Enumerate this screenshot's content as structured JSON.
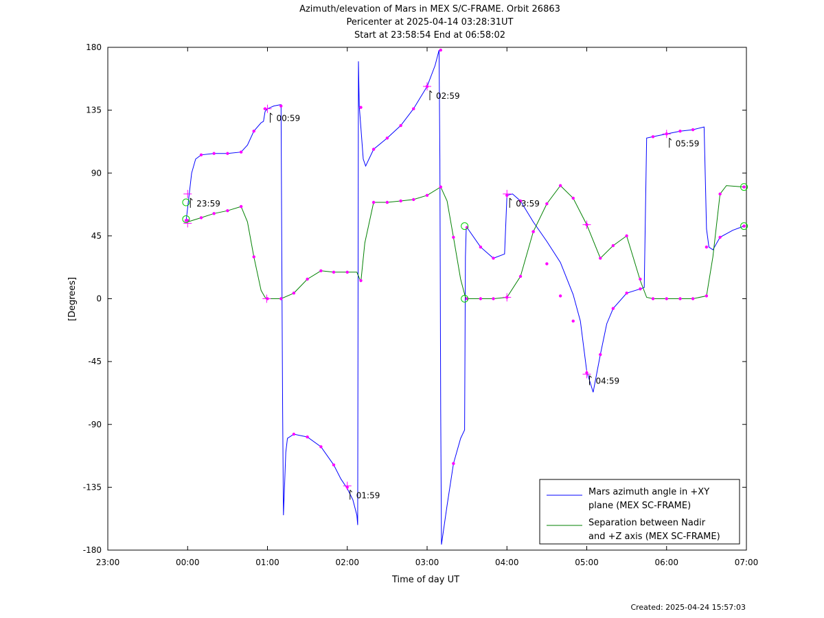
{
  "chart_data": {
    "type": "line",
    "title_lines": [
      "Azimuth/elevation of Mars in MEX S/C-FRAME.  Orbit 26863",
      "Pericenter at 2025-04-14 03:28:31UT",
      "Start at 23:58:54 End at 06:58:02"
    ],
    "xlabel": "Time of day UT",
    "ylabel": "[Degrees]",
    "xlim": [
      -1.0,
      7.0
    ],
    "ylim": [
      -180,
      180
    ],
    "x_ticks": [
      -1,
      0,
      1,
      2,
      3,
      4,
      5,
      6,
      7
    ],
    "x_tick_labels": [
      "23:00",
      "00:00",
      "01:00",
      "02:00",
      "03:00",
      "04:00",
      "05:00",
      "06:00",
      "07:00"
    ],
    "y_ticks": [
      180,
      135,
      90,
      45,
      0,
      -45,
      -90,
      -135,
      -180
    ],
    "y_tick_labels": [
      "180",
      "135",
      "90",
      "45",
      "0",
      "-45",
      "-90",
      "-135",
      "-180"
    ],
    "grid": false,
    "legend_position": "bottom-right",
    "series": [
      {
        "name_lines": [
          "Mars azimuth angle in +XY",
          "plane (MEX SC-FRAME)"
        ],
        "color": "#0000ff",
        "points": [
          [
            -0.02,
            55
          ],
          [
            0.05,
            90
          ],
          [
            0.1,
            100
          ],
          [
            0.17,
            103
          ],
          [
            0.33,
            104
          ],
          [
            0.5,
            104
          ],
          [
            0.67,
            105
          ],
          [
            0.75,
            110
          ],
          [
            0.83,
            120
          ],
          [
            0.92,
            126
          ],
          [
            0.95,
            127
          ],
          [
            0.97,
            134
          ],
          [
            1.0,
            136
          ],
          [
            1.08,
            138
          ],
          [
            1.17,
            139
          ],
          [
            1.18,
            30
          ],
          [
            1.19,
            -80
          ],
          [
            1.2,
            -155
          ],
          [
            1.23,
            -110
          ],
          [
            1.25,
            -100
          ],
          [
            1.33,
            -97
          ],
          [
            1.5,
            -99
          ],
          [
            1.67,
            -106
          ],
          [
            1.83,
            -119
          ],
          [
            1.92,
            -129
          ],
          [
            2.0,
            -136
          ],
          [
            2.07,
            -144
          ],
          [
            2.12,
            -155
          ],
          [
            2.13,
            -162
          ],
          [
            2.14,
            170
          ],
          [
            2.15,
            138
          ],
          [
            2.2,
            100
          ],
          [
            2.23,
            95
          ],
          [
            2.33,
            107
          ],
          [
            2.5,
            115
          ],
          [
            2.67,
            124
          ],
          [
            2.83,
            136
          ],
          [
            3.0,
            152
          ],
          [
            3.1,
            167
          ],
          [
            3.15,
            178
          ],
          [
            3.16,
            100
          ],
          [
            3.17,
            -80
          ],
          [
            3.18,
            -176
          ],
          [
            3.25,
            -148
          ],
          [
            3.33,
            -118
          ],
          [
            3.42,
            -100
          ],
          [
            3.47,
            -94
          ],
          [
            3.48,
            30
          ],
          [
            3.49,
            51
          ],
          [
            3.5,
            51
          ],
          [
            3.67,
            37
          ],
          [
            3.83,
            29
          ],
          [
            3.97,
            32
          ],
          [
            4.0,
            74
          ],
          [
            4.07,
            75
          ],
          [
            4.17,
            70
          ],
          [
            4.33,
            55
          ],
          [
            4.5,
            41
          ],
          [
            4.67,
            26
          ],
          [
            4.83,
            3
          ],
          [
            4.92,
            -16
          ],
          [
            5.0,
            -52
          ],
          [
            5.08,
            -67
          ],
          [
            5.17,
            -40
          ],
          [
            5.25,
            -18
          ],
          [
            5.33,
            -7
          ],
          [
            5.5,
            4
          ],
          [
            5.67,
            7
          ],
          [
            5.72,
            8
          ],
          [
            5.75,
            115
          ],
          [
            5.83,
            116
          ],
          [
            6.0,
            118
          ],
          [
            6.17,
            120
          ],
          [
            6.33,
            121
          ],
          [
            6.47,
            123
          ],
          [
            6.5,
            50
          ],
          [
            6.53,
            37
          ],
          [
            6.58,
            35
          ],
          [
            6.67,
            44
          ],
          [
            6.83,
            49
          ],
          [
            6.97,
            52
          ]
        ],
        "markers": [
          [
            -0.02,
            56
          ],
          [
            0.17,
            103
          ],
          [
            0.33,
            104
          ],
          [
            0.5,
            104
          ],
          [
            0.67,
            105
          ],
          [
            0.83,
            120
          ],
          [
            0.97,
            136
          ],
          [
            1.17,
            138
          ],
          [
            1.33,
            -97
          ],
          [
            1.5,
            -99
          ],
          [
            1.67,
            -106
          ],
          [
            1.83,
            -119
          ],
          [
            2.0,
            -135
          ],
          [
            2.17,
            137
          ],
          [
            2.33,
            107
          ],
          [
            2.5,
            115
          ],
          [
            2.67,
            124
          ],
          [
            2.83,
            136
          ],
          [
            3.0,
            152
          ],
          [
            3.17,
            178
          ],
          [
            3.33,
            -118
          ],
          [
            3.5,
            51
          ],
          [
            3.67,
            37
          ],
          [
            3.83,
            29
          ],
          [
            4.0,
            74
          ],
          [
            4.17,
            70
          ],
          [
            4.33,
            48
          ],
          [
            4.5,
            25
          ],
          [
            4.67,
            2
          ],
          [
            4.83,
            -16
          ],
          [
            5.0,
            -53
          ],
          [
            5.17,
            -40
          ],
          [
            5.33,
            -7
          ],
          [
            5.5,
            4
          ],
          [
            5.67,
            7
          ],
          [
            5.83,
            116
          ],
          [
            6.0,
            118
          ],
          [
            6.17,
            120
          ],
          [
            6.33,
            121
          ],
          [
            6.5,
            37
          ],
          [
            6.67,
            44
          ],
          [
            6.97,
            52
          ]
        ]
      },
      {
        "name_lines": [
          "Separation between Nadir",
          "and +Z axis (MEX SC-FRAME)"
        ],
        "color": "#008000",
        "points": [
          [
            -0.02,
            57
          ],
          [
            0.0,
            55
          ],
          [
            0.17,
            58
          ],
          [
            0.33,
            61
          ],
          [
            0.5,
            63
          ],
          [
            0.67,
            66
          ],
          [
            0.75,
            55
          ],
          [
            0.83,
            30
          ],
          [
            0.92,
            6
          ],
          [
            0.97,
            1
          ],
          [
            1.0,
            0
          ],
          [
            1.17,
            0
          ],
          [
            1.33,
            4
          ],
          [
            1.5,
            14
          ],
          [
            1.67,
            20
          ],
          [
            1.83,
            19
          ],
          [
            2.0,
            19
          ],
          [
            2.12,
            19
          ],
          [
            2.17,
            12
          ],
          [
            2.22,
            40
          ],
          [
            2.33,
            69
          ],
          [
            2.5,
            69
          ],
          [
            2.67,
            70
          ],
          [
            2.83,
            71
          ],
          [
            3.0,
            74
          ],
          [
            3.17,
            80
          ],
          [
            3.25,
            70
          ],
          [
            3.33,
            44
          ],
          [
            3.42,
            14
          ],
          [
            3.48,
            1
          ],
          [
            3.5,
            0
          ],
          [
            3.67,
            0
          ],
          [
            3.83,
            0
          ],
          [
            4.0,
            1
          ],
          [
            4.17,
            16
          ],
          [
            4.33,
            48
          ],
          [
            4.5,
            68
          ],
          [
            4.67,
            81
          ],
          [
            4.83,
            72
          ],
          [
            5.0,
            53
          ],
          [
            5.17,
            29
          ],
          [
            5.33,
            38
          ],
          [
            5.5,
            45
          ],
          [
            5.58,
            30
          ],
          [
            5.67,
            13
          ],
          [
            5.75,
            1
          ],
          [
            5.83,
            0
          ],
          [
            6.0,
            0
          ],
          [
            6.17,
            0
          ],
          [
            6.33,
            0
          ],
          [
            6.5,
            2
          ],
          [
            6.58,
            30
          ],
          [
            6.67,
            75
          ],
          [
            6.75,
            81
          ],
          [
            6.97,
            80
          ]
        ],
        "markers": [
          [
            0.0,
            56
          ],
          [
            0.17,
            58
          ],
          [
            0.33,
            61
          ],
          [
            0.5,
            63
          ],
          [
            0.67,
            66
          ],
          [
            0.83,
            30
          ],
          [
            1.0,
            0
          ],
          [
            1.17,
            0
          ],
          [
            1.33,
            4
          ],
          [
            1.5,
            14
          ],
          [
            1.67,
            20
          ],
          [
            1.83,
            19
          ],
          [
            2.0,
            19
          ],
          [
            2.17,
            13
          ],
          [
            2.33,
            69
          ],
          [
            2.5,
            69
          ],
          [
            2.67,
            70
          ],
          [
            2.83,
            71
          ],
          [
            3.0,
            74
          ],
          [
            3.17,
            80
          ],
          [
            3.33,
            44
          ],
          [
            3.5,
            0
          ],
          [
            3.67,
            0
          ],
          [
            3.83,
            0
          ],
          [
            4.0,
            1
          ],
          [
            4.17,
            16
          ],
          [
            4.33,
            48
          ],
          [
            4.5,
            68
          ],
          [
            4.67,
            81
          ],
          [
            4.83,
            72
          ],
          [
            5.0,
            53
          ],
          [
            5.17,
            29
          ],
          [
            5.33,
            38
          ],
          [
            5.5,
            45
          ],
          [
            5.67,
            14
          ],
          [
            5.83,
            0
          ],
          [
            6.0,
            0
          ],
          [
            6.17,
            0
          ],
          [
            6.33,
            0
          ],
          [
            6.5,
            2
          ],
          [
            6.67,
            75
          ],
          [
            6.97,
            80
          ]
        ]
      }
    ],
    "marker_color": "#ff00ff",
    "circle_color": "#00cc00",
    "cross_points": [
      [
        0.0,
        75
      ],
      [
        0.0,
        54
      ],
      [
        1.0,
        136
      ],
      [
        2.0,
        -134
      ],
      [
        3.0,
        152
      ],
      [
        4.0,
        75
      ],
      [
        5.0,
        53
      ],
      [
        5.0,
        -54
      ],
      [
        6.0,
        118
      ],
      [
        0.99,
        0
      ],
      [
        4.0,
        1
      ]
    ],
    "circle_points": [
      [
        -0.02,
        69
      ],
      [
        -0.02,
        57
      ],
      [
        3.47,
        52
      ],
      [
        3.47,
        0
      ],
      [
        6.97,
        80
      ],
      [
        6.97,
        52
      ]
    ],
    "time_annotations": [
      {
        "x": 0.0,
        "y": 72,
        "label": "23:59"
      },
      {
        "x": 1.0,
        "y": 133,
        "label": "00:59"
      },
      {
        "x": 2.0,
        "y": -137,
        "label": "01:59"
      },
      {
        "x": 3.0,
        "y": 149,
        "label": "02:59"
      },
      {
        "x": 4.0,
        "y": 72,
        "label": "03:59"
      },
      {
        "x": 5.0,
        "y": -55,
        "label": "04:59"
      },
      {
        "x": 6.0,
        "y": 115,
        "label": "05:59"
      }
    ],
    "footer": "Created: 2025-04-24 15:57:03"
  }
}
